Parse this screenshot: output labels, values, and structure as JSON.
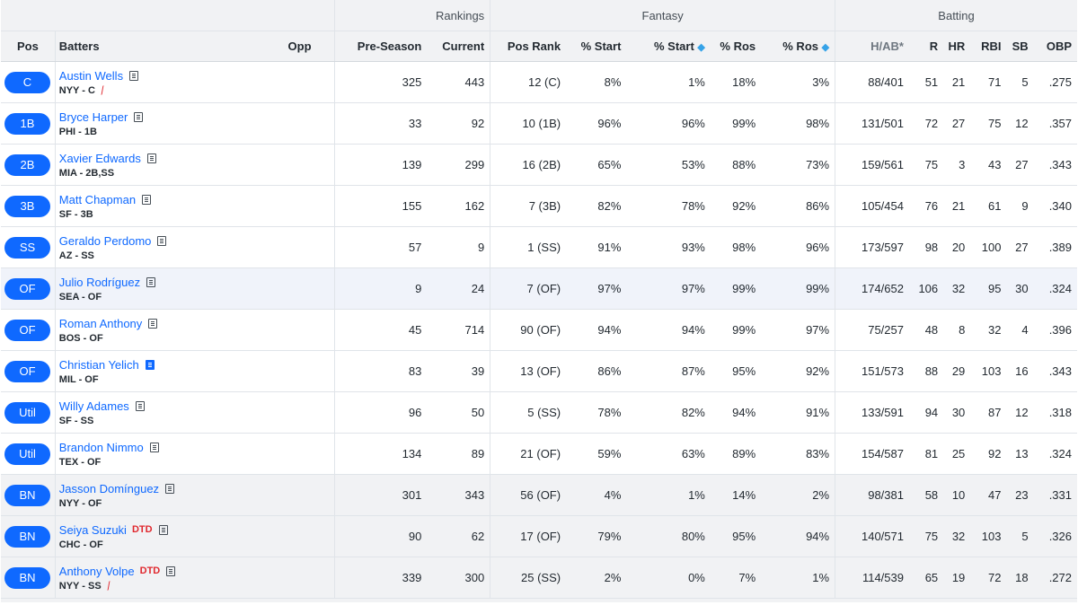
{
  "groups": {
    "rankings": "Rankings",
    "fantasy": "Fantasy",
    "batting": "Batting"
  },
  "columns": {
    "pos": "Pos",
    "batters": "Batters",
    "opp": "Opp",
    "preseason": "Pre-Season",
    "current": "Current",
    "posrank": "Pos Rank",
    "start": "% Start",
    "start_premium": "% Start",
    "ros": "% Ros",
    "ros_premium": "% Ros",
    "hab": "H/AB*",
    "r": "R",
    "hr": "HR",
    "rbi": "RBI",
    "sb": "SB",
    "obp": "OBP",
    "premium_icon": "diamond-icon"
  },
  "players": [
    {
      "pos": "C",
      "name": "Austin Wells",
      "team": "NYY - C",
      "status": "",
      "has_bat_icon": true,
      "note_active": false,
      "pre": "325",
      "cur": "443",
      "posrank": "12 (C)",
      "start": "8%",
      "startp": "1%",
      "ros": "18%",
      "rosp": "3%",
      "hab": "88/401",
      "r": "51",
      "hr": "21",
      "rbi": "71",
      "sb": "5",
      "obp": ".275"
    },
    {
      "pos": "1B",
      "name": "Bryce Harper",
      "team": "PHI - 1B",
      "status": "",
      "has_bat_icon": false,
      "note_active": false,
      "pre": "33",
      "cur": "92",
      "posrank": "10 (1B)",
      "start": "96%",
      "startp": "96%",
      "ros": "99%",
      "rosp": "98%",
      "hab": "131/501",
      "r": "72",
      "hr": "27",
      "rbi": "75",
      "sb": "12",
      "obp": ".357"
    },
    {
      "pos": "2B",
      "name": "Xavier Edwards",
      "team": "MIA - 2B,SS",
      "status": "",
      "has_bat_icon": false,
      "note_active": false,
      "pre": "139",
      "cur": "299",
      "posrank": "16 (2B)",
      "start": "65%",
      "startp": "53%",
      "ros": "88%",
      "rosp": "73%",
      "hab": "159/561",
      "r": "75",
      "hr": "3",
      "rbi": "43",
      "sb": "27",
      "obp": ".343"
    },
    {
      "pos": "3B",
      "name": "Matt Chapman",
      "team": "SF - 3B",
      "status": "",
      "has_bat_icon": false,
      "note_active": false,
      "pre": "155",
      "cur": "162",
      "posrank": "7 (3B)",
      "start": "82%",
      "startp": "78%",
      "ros": "92%",
      "rosp": "86%",
      "hab": "105/454",
      "r": "76",
      "hr": "21",
      "rbi": "61",
      "sb": "9",
      "obp": ".340"
    },
    {
      "pos": "SS",
      "name": "Geraldo Perdomo",
      "team": "AZ - SS",
      "status": "",
      "has_bat_icon": false,
      "note_active": false,
      "pre": "57",
      "cur": "9",
      "posrank": "1 (SS)",
      "start": "91%",
      "startp": "93%",
      "ros": "98%",
      "rosp": "96%",
      "hab": "173/597",
      "r": "98",
      "hr": "20",
      "rbi": "100",
      "sb": "27",
      "obp": ".389"
    },
    {
      "pos": "OF",
      "name": "Julio Rodríguez",
      "team": "SEA - OF",
      "status": "",
      "has_bat_icon": false,
      "note_active": false,
      "highlight": true,
      "pre": "9",
      "cur": "24",
      "posrank": "7 (OF)",
      "start": "97%",
      "startp": "97%",
      "ros": "99%",
      "rosp": "99%",
      "hab": "174/652",
      "r": "106",
      "hr": "32",
      "rbi": "95",
      "sb": "30",
      "obp": ".324"
    },
    {
      "pos": "OF",
      "name": "Roman Anthony",
      "team": "BOS - OF",
      "status": "",
      "has_bat_icon": false,
      "note_active": false,
      "pre": "45",
      "cur": "714",
      "posrank": "90 (OF)",
      "start": "94%",
      "startp": "94%",
      "ros": "99%",
      "rosp": "97%",
      "hab": "75/257",
      "r": "48",
      "hr": "8",
      "rbi": "32",
      "sb": "4",
      "obp": ".396"
    },
    {
      "pos": "OF",
      "name": "Christian Yelich",
      "team": "MIL - OF",
      "status": "",
      "has_bat_icon": false,
      "note_active": true,
      "pre": "83",
      "cur": "39",
      "posrank": "13 (OF)",
      "start": "86%",
      "startp": "87%",
      "ros": "95%",
      "rosp": "92%",
      "hab": "151/573",
      "r": "88",
      "hr": "29",
      "rbi": "103",
      "sb": "16",
      "obp": ".343"
    },
    {
      "pos": "Util",
      "name": "Willy Adames",
      "team": "SF - SS",
      "status": "",
      "has_bat_icon": false,
      "note_active": false,
      "pre": "96",
      "cur": "50",
      "posrank": "5 (SS)",
      "start": "78%",
      "startp": "82%",
      "ros": "94%",
      "rosp": "91%",
      "hab": "133/591",
      "r": "94",
      "hr": "30",
      "rbi": "87",
      "sb": "12",
      "obp": ".318"
    },
    {
      "pos": "Util",
      "name": "Brandon Nimmo",
      "team": "TEX - OF",
      "status": "",
      "has_bat_icon": false,
      "note_active": false,
      "pre": "134",
      "cur": "89",
      "posrank": "21 (OF)",
      "start": "59%",
      "startp": "63%",
      "ros": "89%",
      "rosp": "83%",
      "hab": "154/587",
      "r": "81",
      "hr": "25",
      "rbi": "92",
      "sb": "13",
      "obp": ".324"
    },
    {
      "pos": "BN",
      "name": "Jasson Domínguez",
      "team": "NYY - OF",
      "status": "",
      "has_bat_icon": false,
      "note_active": false,
      "bench": true,
      "pre": "301",
      "cur": "343",
      "posrank": "56 (OF)",
      "start": "4%",
      "startp": "1%",
      "ros": "14%",
      "rosp": "2%",
      "hab": "98/381",
      "r": "58",
      "hr": "10",
      "rbi": "47",
      "sb": "23",
      "obp": ".331"
    },
    {
      "pos": "BN",
      "name": "Seiya Suzuki",
      "team": "CHC - OF",
      "status": "DTD",
      "has_bat_icon": false,
      "note_active": false,
      "bench": true,
      "pre": "90",
      "cur": "62",
      "posrank": "17 (OF)",
      "start": "79%",
      "startp": "80%",
      "ros": "95%",
      "rosp": "94%",
      "hab": "140/571",
      "r": "75",
      "hr": "32",
      "rbi": "103",
      "sb": "5",
      "obp": ".326"
    },
    {
      "pos": "BN",
      "name": "Anthony Volpe",
      "team": "NYY - SS",
      "status": "DTD",
      "has_bat_icon": true,
      "note_active": false,
      "bench": true,
      "pre": "339",
      "cur": "300",
      "posrank": "25 (SS)",
      "start": "2%",
      "startp": "0%",
      "ros": "7%",
      "rosp": "1%",
      "hab": "114/539",
      "r": "65",
      "hr": "19",
      "rbi": "72",
      "sb": "18",
      "obp": ".272"
    }
  ]
}
